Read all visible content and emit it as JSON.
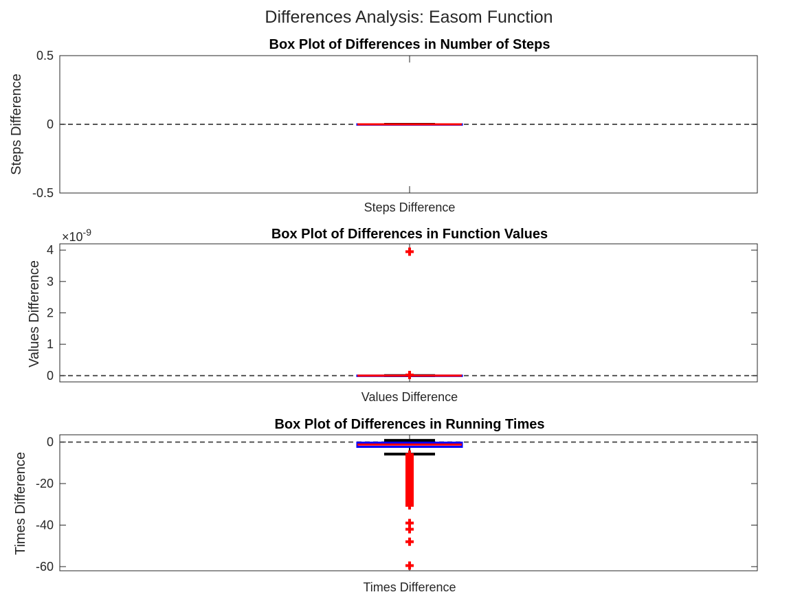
{
  "figure": {
    "suptitle": "Differences Analysis: Easom Function"
  },
  "chart_data": [
    {
      "type": "box",
      "title": "Box Plot of Differences in Number of Steps",
      "ylabel": "Steps Difference",
      "category": "Steps Difference",
      "ylim": [
        -0.5,
        0.5
      ],
      "yticks": [
        -0.5,
        0,
        0.5
      ],
      "ytick_labels": [
        "-0.5",
        "0",
        "0.5"
      ],
      "exponent_label": "",
      "reference_line": 0,
      "box": {
        "q1": 0,
        "median": 0,
        "q3": 0,
        "whisker_low": 0,
        "whisker_high": 0
      },
      "outliers": [],
      "colors": {
        "box": "#0000ff",
        "median": "#ff0000",
        "whisker": "#000000",
        "outlier": "#ff0000",
        "reference": "#555555"
      }
    },
    {
      "type": "box",
      "title": "Box Plot of Differences in Function Values",
      "ylabel": "Values Difference",
      "category": "Values Difference",
      "ylim": [
        -0.2,
        4.2
      ],
      "yticks": [
        0,
        1,
        2,
        3,
        4
      ],
      "ytick_labels": [
        "0",
        "1",
        "2",
        "3",
        "4"
      ],
      "exponent_label": "×10",
      "exponent_power": "-9",
      "reference_line": 0,
      "box": {
        "q1": 0,
        "median": 0,
        "q3": 0,
        "whisker_low": 0,
        "whisker_high": 0
      },
      "outliers": [
        3.95,
        0.02
      ],
      "colors": {
        "box": "#0000ff",
        "median": "#ff0000",
        "whisker": "#000000",
        "outlier": "#ff0000",
        "reference": "#555555"
      }
    },
    {
      "type": "box",
      "title": "Box Plot of Differences in Running Times",
      "ylabel": "Times Difference",
      "category": "Times Difference",
      "ylim": [
        -62,
        3.5
      ],
      "yticks": [
        -60,
        -40,
        -20,
        0
      ],
      "ytick_labels": [
        "-60",
        "-40",
        "-20",
        "0"
      ],
      "exponent_label": "",
      "reference_line": 0,
      "box": {
        "q1": -2.3,
        "median": -1.2,
        "q3": -0.3,
        "whisker_low": -5.8,
        "whisker_high": 0.8
      },
      "outliers": [
        -6,
        -7,
        -8,
        -9,
        -10,
        -11,
        -12,
        -13,
        -14,
        -15,
        -16,
        -17,
        -18,
        -19,
        -20,
        -21,
        -22,
        -23,
        -24,
        -25,
        -26,
        -27,
        -28,
        -29,
        -30,
        -30.5,
        -39,
        -42,
        -48,
        -59.5
      ],
      "colors": {
        "box": "#0000ff",
        "median": "#ff0000",
        "whisker": "#000000",
        "outlier": "#ff0000",
        "reference": "#555555"
      }
    }
  ]
}
